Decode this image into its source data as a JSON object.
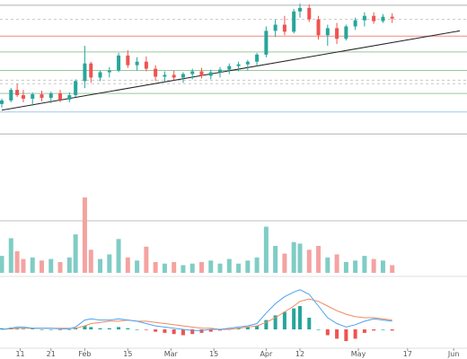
{
  "colors": {
    "background": "#ffffff",
    "up": "#26a69a",
    "down": "#ef5350",
    "up_volume": "#7fcdc5",
    "down_volume": "#f4a3a1",
    "wick": "#333333",
    "trendline": "#222222",
    "hline_gray": "#b0b0b0",
    "hline_red": "#f08a80",
    "hline_green": "#98c99a",
    "hline_blue": "#9ec9f0",
    "hline_dashed": "#c8c8c8",
    "macd_line": "#4aa3f0",
    "signal_line": "#f08a60",
    "pane_separator": "#c0c0c0"
  },
  "chart_data": {
    "type": "candlestick",
    "title": "",
    "xlabel": "",
    "ylabel": "",
    "grid": false,
    "legend": "none",
    "x_range": [
      "Jan 5",
      "Jun 3"
    ],
    "x_ticks": [
      "11",
      "21",
      "Feb",
      "15",
      "Mar",
      "15",
      "Apr",
      "12",
      "May",
      "17",
      "Jun"
    ],
    "price_ylim": [
      0,
      220
    ],
    "horizontal_levels": [
      {
        "value": 214,
        "color": "gray",
        "style": "solid"
      },
      {
        "value": 198,
        "color": "gray",
        "style": "dashed"
      },
      {
        "value": 179,
        "color": "red",
        "style": "solid"
      },
      {
        "value": 161,
        "color": "green",
        "style": "solid"
      },
      {
        "value": 140,
        "color": "green",
        "style": "solid"
      },
      {
        "value": 129,
        "color": "gray",
        "style": "dashed"
      },
      {
        "value": 125,
        "color": "gray",
        "style": "dashed"
      },
      {
        "value": 114,
        "color": "green",
        "style": "solid"
      },
      {
        "value": 93,
        "color": "blue",
        "style": "solid"
      },
      {
        "value": 68,
        "color": "gray",
        "style": "solid"
      }
    ],
    "trendline": {
      "from": {
        "x": "Jan 5",
        "y": 95
      },
      "to": {
        "x": "Jun 3",
        "y": 185
      }
    },
    "candles": [
      {
        "x": "Jan 5",
        "open": 102,
        "high": 108,
        "low": 98,
        "close": 106
      },
      {
        "x": "Jan 8",
        "open": 106,
        "high": 120,
        "low": 104,
        "close": 118
      },
      {
        "x": "Jan 10",
        "open": 118,
        "high": 125,
        "low": 110,
        "close": 112
      },
      {
        "x": "Jan 12",
        "open": 112,
        "high": 118,
        "low": 104,
        "close": 108
      },
      {
        "x": "Jan 15",
        "open": 108,
        "high": 115,
        "low": 100,
        "close": 113
      },
      {
        "x": "Jan 18",
        "open": 113,
        "high": 117,
        "low": 105,
        "close": 109
      },
      {
        "x": "Jan 21",
        "open": 109,
        "high": 116,
        "low": 103,
        "close": 114
      },
      {
        "x": "Jan 24",
        "open": 114,
        "high": 118,
        "low": 104,
        "close": 107
      },
      {
        "x": "Jan 27",
        "open": 107,
        "high": 115,
        "low": 104,
        "close": 112
      },
      {
        "x": "Jan 29",
        "open": 112,
        "high": 130,
        "low": 110,
        "close": 128
      },
      {
        "x": "Feb 1",
        "open": 128,
        "high": 168,
        "low": 120,
        "close": 148
      },
      {
        "x": "Feb 3",
        "open": 148,
        "high": 150,
        "low": 126,
        "close": 132
      },
      {
        "x": "Feb 6",
        "open": 132,
        "high": 140,
        "low": 128,
        "close": 138
      },
      {
        "x": "Feb 9",
        "open": 138,
        "high": 144,
        "low": 132,
        "close": 140
      },
      {
        "x": "Feb 12",
        "open": 140,
        "high": 160,
        "low": 138,
        "close": 157
      },
      {
        "x": "Feb 15",
        "open": 157,
        "high": 163,
        "low": 143,
        "close": 146
      },
      {
        "x": "Feb 18",
        "open": 146,
        "high": 155,
        "low": 140,
        "close": 150
      },
      {
        "x": "Feb 21",
        "open": 150,
        "high": 156,
        "low": 139,
        "close": 142
      },
      {
        "x": "Feb 24",
        "open": 142,
        "high": 146,
        "low": 128,
        "close": 133
      },
      {
        "x": "Feb 27",
        "open": 133,
        "high": 139,
        "low": 127,
        "close": 135
      },
      {
        "x": "Mar 2",
        "open": 135,
        "high": 140,
        "low": 129,
        "close": 132
      },
      {
        "x": "Mar 5",
        "open": 132,
        "high": 138,
        "low": 126,
        "close": 136
      },
      {
        "x": "Mar 8",
        "open": 136,
        "high": 142,
        "low": 130,
        "close": 139
      },
      {
        "x": "Mar 11",
        "open": 139,
        "high": 143,
        "low": 131,
        "close": 134
      },
      {
        "x": "Mar 14",
        "open": 134,
        "high": 141,
        "low": 130,
        "close": 138
      },
      {
        "x": "Mar 17",
        "open": 138,
        "high": 144,
        "low": 132,
        "close": 141
      },
      {
        "x": "Mar 20",
        "open": 141,
        "high": 148,
        "low": 136,
        "close": 145
      },
      {
        "x": "Mar 23",
        "open": 145,
        "high": 150,
        "low": 139,
        "close": 147
      },
      {
        "x": "Mar 26",
        "open": 147,
        "high": 152,
        "low": 140,
        "close": 150
      },
      {
        "x": "Mar 29",
        "open": 150,
        "high": 160,
        "low": 145,
        "close": 158
      },
      {
        "x": "Apr 1",
        "open": 158,
        "high": 190,
        "low": 155,
        "close": 185
      },
      {
        "x": "Apr 4",
        "open": 185,
        "high": 198,
        "low": 178,
        "close": 192
      },
      {
        "x": "Apr 7",
        "open": 192,
        "high": 202,
        "low": 180,
        "close": 184
      },
      {
        "x": "Apr 10",
        "open": 184,
        "high": 210,
        "low": 182,
        "close": 207
      },
      {
        "x": "Apr 12",
        "open": 207,
        "high": 216,
        "low": 200,
        "close": 211
      },
      {
        "x": "Apr 15",
        "open": 211,
        "high": 215,
        "low": 195,
        "close": 198
      },
      {
        "x": "Apr 18",
        "open": 198,
        "high": 202,
        "low": 175,
        "close": 180
      },
      {
        "x": "Apr 21",
        "open": 180,
        "high": 192,
        "low": 168,
        "close": 188
      },
      {
        "x": "Apr 24",
        "open": 188,
        "high": 194,
        "low": 170,
        "close": 176
      },
      {
        "x": "Apr 27",
        "open": 176,
        "high": 192,
        "low": 174,
        "close": 190
      },
      {
        "x": "Apr 30",
        "open": 190,
        "high": 200,
        "low": 186,
        "close": 197
      },
      {
        "x": "May 3",
        "open": 197,
        "high": 206,
        "low": 190,
        "close": 202
      },
      {
        "x": "May 6",
        "open": 202,
        "high": 206,
        "low": 193,
        "close": 196
      },
      {
        "x": "May 9",
        "open": 196,
        "high": 204,
        "low": 194,
        "close": 201
      },
      {
        "x": "May 12",
        "open": 201,
        "high": 205,
        "low": 194,
        "close": 199
      }
    ],
    "volume": [
      {
        "x": "Jan 5",
        "value": 22,
        "dir": "up"
      },
      {
        "x": "Jan 8",
        "value": 45,
        "dir": "up"
      },
      {
        "x": "Jan 10",
        "value": 28,
        "dir": "down"
      },
      {
        "x": "Jan 12",
        "value": 18,
        "dir": "down"
      },
      {
        "x": "Jan 15",
        "value": 20,
        "dir": "up"
      },
      {
        "x": "Jan 18",
        "value": 16,
        "dir": "down"
      },
      {
        "x": "Jan 21",
        "value": 18,
        "dir": "up"
      },
      {
        "x": "Jan 24",
        "value": 14,
        "dir": "down"
      },
      {
        "x": "Jan 27",
        "value": 20,
        "dir": "up"
      },
      {
        "x": "Jan 29",
        "value": 50,
        "dir": "up"
      },
      {
        "x": "Feb 1",
        "value": 98,
        "dir": "down"
      },
      {
        "x": "Feb 3",
        "value": 30,
        "dir": "down"
      },
      {
        "x": "Feb 6",
        "value": 18,
        "dir": "up"
      },
      {
        "x": "Feb 9",
        "value": 24,
        "dir": "up"
      },
      {
        "x": "Feb 12",
        "value": 44,
        "dir": "up"
      },
      {
        "x": "Feb 15",
        "value": 20,
        "dir": "down"
      },
      {
        "x": "Feb 18",
        "value": 16,
        "dir": "up"
      },
      {
        "x": "Feb 21",
        "value": 34,
        "dir": "down"
      },
      {
        "x": "Feb 24",
        "value": 14,
        "dir": "down"
      },
      {
        "x": "Feb 27",
        "value": 12,
        "dir": "up"
      },
      {
        "x": "Mar 2",
        "value": 14,
        "dir": "down"
      },
      {
        "x": "Mar 5",
        "value": 10,
        "dir": "up"
      },
      {
        "x": "Mar 8",
        "value": 12,
        "dir": "up"
      },
      {
        "x": "Mar 11",
        "value": 14,
        "dir": "down"
      },
      {
        "x": "Mar 14",
        "value": 16,
        "dir": "up"
      },
      {
        "x": "Mar 17",
        "value": 12,
        "dir": "up"
      },
      {
        "x": "Mar 20",
        "value": 18,
        "dir": "up"
      },
      {
        "x": "Mar 23",
        "value": 12,
        "dir": "up"
      },
      {
        "x": "Mar 26",
        "value": 16,
        "dir": "up"
      },
      {
        "x": "Mar 29",
        "value": 20,
        "dir": "up"
      },
      {
        "x": "Apr 1",
        "value": 60,
        "dir": "up"
      },
      {
        "x": "Apr 4",
        "value": 35,
        "dir": "up"
      },
      {
        "x": "Apr 7",
        "value": 25,
        "dir": "down"
      },
      {
        "x": "Apr 10",
        "value": 40,
        "dir": "up"
      },
      {
        "x": "Apr 12",
        "value": 38,
        "dir": "up"
      },
      {
        "x": "Apr 15",
        "value": 30,
        "dir": "down"
      },
      {
        "x": "Apr 18",
        "value": 35,
        "dir": "down"
      },
      {
        "x": "Apr 21",
        "value": 20,
        "dir": "up"
      },
      {
        "x": "Apr 24",
        "value": 24,
        "dir": "down"
      },
      {
        "x": "Apr 27",
        "value": 14,
        "dir": "up"
      },
      {
        "x": "Apr 30",
        "value": 16,
        "dir": "up"
      },
      {
        "x": "May 3",
        "value": 22,
        "dir": "up"
      },
      {
        "x": "May 6",
        "value": 18,
        "dir": "down"
      },
      {
        "x": "May 9",
        "value": 16,
        "dir": "up"
      },
      {
        "x": "May 12",
        "value": 10,
        "dir": "down"
      }
    ],
    "macd": {
      "histogram": [
        1,
        1.5,
        1,
        0.5,
        0.5,
        0,
        0,
        -0.5,
        0,
        1,
        3,
        2,
        1,
        1,
        2,
        1,
        0,
        -0.5,
        -2,
        -3,
        -4,
        -5,
        -4,
        -3,
        -2,
        -1,
        0,
        1,
        2,
        3,
        8,
        12,
        15,
        18,
        20,
        10,
        0,
        -5,
        -8,
        -10,
        -8,
        -3,
        -1,
        0,
        -1
      ],
      "macd_line": [
        0,
        1,
        2,
        2,
        1,
        1,
        1,
        0.5,
        0.5,
        2,
        8,
        9,
        8,
        8,
        9,
        8,
        7,
        5,
        3,
        2,
        1,
        0,
        -1,
        -1,
        0,
        0,
        1,
        2,
        3,
        5,
        14,
        22,
        28,
        32,
        34,
        30,
        20,
        10,
        5,
        2,
        4,
        7,
        9,
        8,
        7
      ],
      "signal_line": [
        0,
        0.5,
        1,
        1,
        1,
        1,
        1,
        1,
        1,
        1,
        3,
        5,
        6,
        7,
        7,
        8,
        7,
        7,
        6,
        5,
        4,
        3,
        2,
        1,
        1,
        0,
        0,
        1,
        2,
        3,
        6,
        10,
        15,
        20,
        24,
        26,
        24,
        20,
        16,
        13,
        11,
        10,
        10,
        9,
        8
      ]
    }
  }
}
